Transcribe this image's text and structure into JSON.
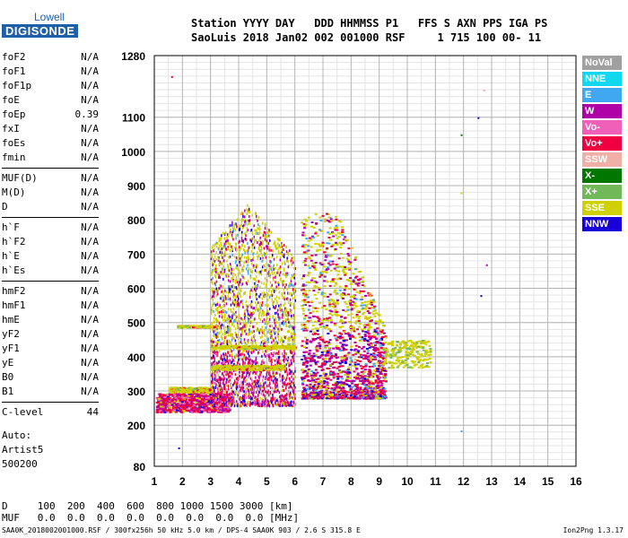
{
  "logo": {
    "line1": "Lowell",
    "line2": "DIGISONDE"
  },
  "header": {
    "line1": "Station YYYY DAY   DDD HHMMSS P1   FFS S AXN PPS IGA PS",
    "line2": "SaoLuis 2018 Jan02 002 001000 RSF     1 715 100 00- 11"
  },
  "params": [
    {
      "name": "foF2",
      "value": "N/A"
    },
    {
      "name": "foF1",
      "value": "N/A"
    },
    {
      "name": "foF1p",
      "value": "N/A"
    },
    {
      "name": "foE",
      "value": "N/A"
    },
    {
      "name": "foEp",
      "value": "0.39"
    },
    {
      "name": "fxI",
      "value": "N/A"
    },
    {
      "name": "foEs",
      "value": "N/A"
    },
    {
      "name": "fmin",
      "value": "N/A"
    },
    {
      "name": "MUF(D)",
      "value": "N/A"
    },
    {
      "name": "M(D)",
      "value": "N/A"
    },
    {
      "name": "D",
      "value": "N/A"
    },
    {
      "name": "h`F",
      "value": "N/A"
    },
    {
      "name": "h`F2",
      "value": "N/A"
    },
    {
      "name": "h`E",
      "value": "N/A"
    },
    {
      "name": "h`Es",
      "value": "N/A"
    },
    {
      "name": "hmF2",
      "value": "N/A"
    },
    {
      "name": "hmF1",
      "value": "N/A"
    },
    {
      "name": "hmE",
      "value": "N/A"
    },
    {
      "name": "yF2",
      "value": "N/A"
    },
    {
      "name": "yF1",
      "value": "N/A"
    },
    {
      "name": "yE",
      "value": "N/A"
    },
    {
      "name": "B0",
      "value": "N/A"
    },
    {
      "name": "B1",
      "value": "N/A"
    },
    {
      "name": "C-level",
      "value": "44"
    }
  ],
  "auto": {
    "line1": "Auto:",
    "line2": "Artist5",
    "line3": "500200"
  },
  "dtable": {
    "row1": "D     100  200  400  600  800 1000 1500 3000 [km]",
    "row2": "MUF   0.0  0.0  0.0  0.0  0.0  0.0  0.0  0.0 [MHz]"
  },
  "footer": {
    "left": "SAA0K_2018002001000.RSF / 300fx256h 50 kHz 5.0 km / DPS-4 SAA0K 903 / 2.6 S 315.8 E",
    "right": "Ion2Png 1.3.17"
  },
  "legend": [
    {
      "label": "NoVal",
      "color": "#a0a0a0"
    },
    {
      "label": "NNE",
      "color": "#10d8f0"
    },
    {
      "label": "E",
      "color": "#40a8f0"
    },
    {
      "label": "W",
      "color": "#b000a8"
    },
    {
      "label": "Vo-",
      "color": "#f060b8"
    },
    {
      "label": "Vo+",
      "color": "#f00040"
    },
    {
      "label": "SSW",
      "color": "#f0b0a8"
    },
    {
      "label": "X-",
      "color": "#007800"
    },
    {
      "label": "X+",
      "color": "#70b858"
    },
    {
      "label": "SSE",
      "color": "#d0d000"
    },
    {
      "label": "NNW",
      "color": "#1800d8"
    }
  ],
  "chart_data": {
    "type": "scatter",
    "title": "",
    "xlabel": "",
    "ylabel": "",
    "xlim": [
      1,
      16
    ],
    "ylim": [
      80,
      1280
    ],
    "x_ticks": [
      1,
      2,
      3,
      4,
      5,
      6,
      7,
      8,
      9,
      10,
      11,
      12,
      13,
      14,
      15,
      16
    ],
    "y_ticks": [
      80,
      200,
      300,
      400,
      500,
      600,
      700,
      800,
      900,
      1000,
      1100,
      1280
    ],
    "grid": true,
    "legend_position": "right",
    "regions": [
      {
        "name": "ionogram-traces-low",
        "x": [
          1.0,
          3.5
        ],
        "y": [
          240,
          290
        ],
        "dominant": "Vo+"
      },
      {
        "name": "ionogram-traces-main",
        "x": [
          3.0,
          6.0
        ],
        "y": [
          250,
          850
        ],
        "dominant": "SSE"
      },
      {
        "name": "ionogram-traces-mid",
        "x": [
          6.2,
          9.2
        ],
        "y": [
          280,
          800
        ],
        "dominant": "Vo+"
      },
      {
        "name": "ionogram-traces-tail",
        "x": [
          9.2,
          10.8
        ],
        "y": [
          360,
          460
        ],
        "dominant": "SSE"
      }
    ],
    "isolated_points": [
      {
        "x": 1.6,
        "y": 1220,
        "mode": "Vo+"
      },
      {
        "x": 1.85,
        "y": 135,
        "mode": "NNW"
      },
      {
        "x": 11.9,
        "y": 1050,
        "mode": "X-"
      },
      {
        "x": 12.5,
        "y": 1100,
        "mode": "NNW"
      },
      {
        "x": 12.6,
        "y": 580,
        "mode": "NNW"
      },
      {
        "x": 11.9,
        "y": 185,
        "mode": "E"
      },
      {
        "x": 12.7,
        "y": 1180,
        "mode": "SSW"
      },
      {
        "x": 12.8,
        "y": 670,
        "mode": "W"
      },
      {
        "x": 11.9,
        "y": 880,
        "mode": "SSE"
      }
    ]
  }
}
